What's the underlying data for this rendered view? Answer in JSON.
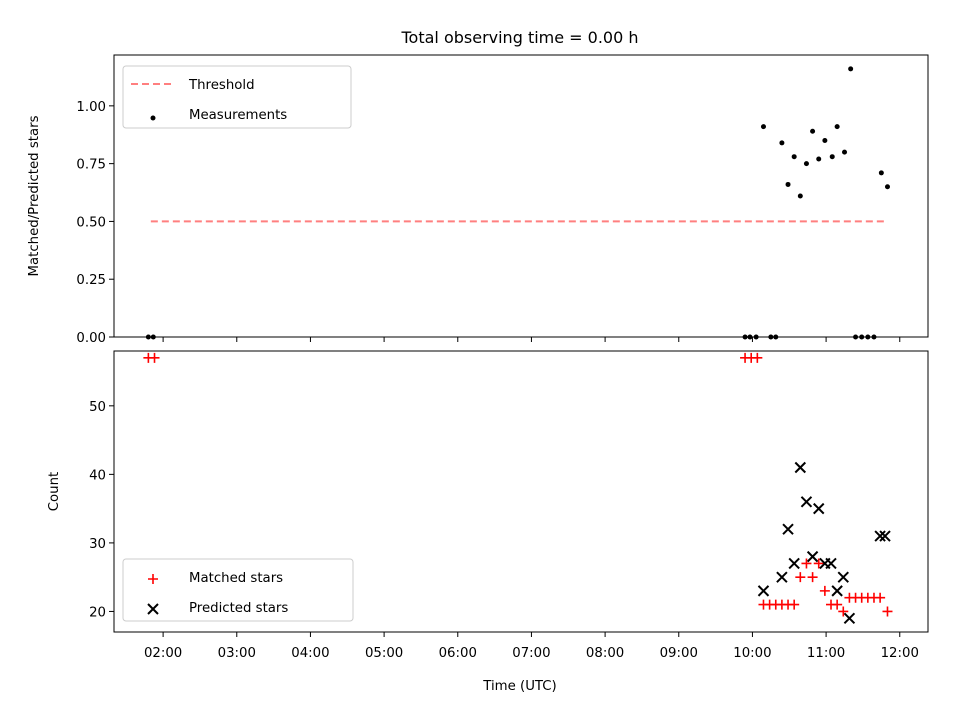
{
  "chart_data": {
    "title": "Total observing time = 0.00 h",
    "xlabel": "Time (UTC)",
    "x_ticks": [
      "02:00",
      "03:00",
      "04:00",
      "05:00",
      "06:00",
      "07:00",
      "08:00",
      "09:00",
      "10:00",
      "11:00",
      "12:00"
    ],
    "xlim": [
      "01:20",
      "12:23"
    ],
    "panels": [
      {
        "type": "scatter",
        "ylabel": "Matched/Predicted stars",
        "ylim": [
          0,
          1.22
        ],
        "y_ticks": [
          "0.00",
          "0.25",
          "0.50",
          "0.75",
          "1.00"
        ],
        "legend": {
          "placement": "upper-left",
          "entries": [
            "Threshold",
            "Measurements"
          ]
        },
        "threshold": {
          "name": "Threshold",
          "value": 0.5,
          "x_start": "01:50",
          "x_end": "11:50",
          "color": "#ff7f7f",
          "style": "dashed"
        },
        "series": [
          {
            "name": "Measurements",
            "color": "#000000",
            "marker": "dot",
            "points": [
              [
                "01:48",
                0
              ],
              [
                "01:52",
                0
              ],
              [
                "09:54",
                0
              ],
              [
                "09:58",
                0
              ],
              [
                "10:03",
                0
              ],
              [
                "10:15",
                0
              ],
              [
                "10:19",
                0
              ],
              [
                "10:09",
                0.91
              ],
              [
                "10:24",
                0.84
              ],
              [
                "10:29",
                0.66
              ],
              [
                "10:34",
                0.78
              ],
              [
                "10:39",
                0.61
              ],
              [
                "10:44",
                0.75
              ],
              [
                "10:49",
                0.89
              ],
              [
                "10:54",
                0.77
              ],
              [
                "10:59",
                0.85
              ],
              [
                "11:05",
                0.78
              ],
              [
                "11:09",
                0.91
              ],
              [
                "11:15",
                0.8
              ],
              [
                "11:20",
                1.16
              ],
              [
                "11:24",
                0
              ],
              [
                "11:29",
                0
              ],
              [
                "11:34",
                0
              ],
              [
                "11:39",
                0
              ],
              [
                "11:45",
                0.71
              ],
              [
                "11:50",
                0.65
              ]
            ]
          }
        ]
      },
      {
        "type": "scatter",
        "ylabel": "Count",
        "ylim": [
          17,
          58
        ],
        "y_ticks": [
          "20",
          "30",
          "40",
          "50"
        ],
        "legend": {
          "placement": "lower-left",
          "entries": [
            "Matched stars",
            "Predicted stars"
          ]
        },
        "series": [
          {
            "name": "Matched stars",
            "color": "#ff0000",
            "marker": "plus",
            "points": [
              [
                "01:48",
                57
              ],
              [
                "01:53",
                57
              ],
              [
                "09:54",
                57
              ],
              [
                "09:59",
                57
              ],
              [
                "10:04",
                57
              ],
              [
                "10:09",
                21
              ],
              [
                "10:14",
                21
              ],
              [
                "10:19",
                21
              ],
              [
                "10:24",
                21
              ],
              [
                "10:29",
                21
              ],
              [
                "10:34",
                21
              ],
              [
                "10:39",
                25
              ],
              [
                "10:44",
                27
              ],
              [
                "10:49",
                25
              ],
              [
                "10:54",
                27
              ],
              [
                "10:59",
                23
              ],
              [
                "11:04",
                21
              ],
              [
                "11:09",
                21
              ],
              [
                "11:14",
                20
              ],
              [
                "11:19",
                22
              ],
              [
                "11:24",
                22
              ],
              [
                "11:29",
                22
              ],
              [
                "11:34",
                22
              ],
              [
                "11:39",
                22
              ],
              [
                "11:44",
                22
              ],
              [
                "11:50",
                20
              ]
            ]
          },
          {
            "name": "Predicted stars",
            "color": "#000000",
            "marker": "x",
            "points": [
              [
                "10:09",
                23
              ],
              [
                "10:24",
                25
              ],
              [
                "10:29",
                32
              ],
              [
                "10:34",
                27
              ],
              [
                "10:39",
                41
              ],
              [
                "10:44",
                36
              ],
              [
                "10:49",
                28
              ],
              [
                "10:54",
                35
              ],
              [
                "10:59",
                27
              ],
              [
                "11:04",
                27
              ],
              [
                "11:09",
                23
              ],
              [
                "11:14",
                25
              ],
              [
                "11:19",
                19
              ],
              [
                "11:44",
                31
              ],
              [
                "11:48",
                31
              ]
            ]
          }
        ]
      }
    ]
  }
}
